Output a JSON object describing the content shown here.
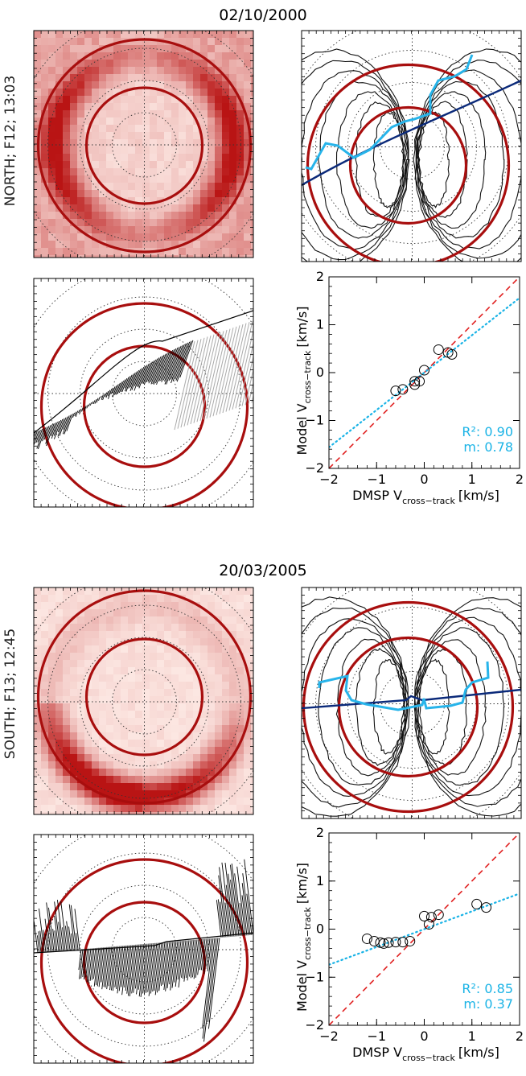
{
  "panels": [
    {
      "date": "02/10/2000",
      "side_label": "NORTH; F12; 13:03",
      "colors": {
        "ring": "#a80e0e",
        "track": "#0b2a7a",
        "model": "#27b4ea",
        "fit": "#19b3e6",
        "identity": "#e02020"
      },
      "scatter": {
        "xlabel": "DMSP V",
        "xlabel_sub": "cross−track",
        "ylabel": "Model V",
        "ylabel_sub": "cross−track",
        "unit": "[km/s]",
        "r2_label": "R²: 0.90",
        "m_label": "m: 0.78"
      }
    },
    {
      "date": "20/03/2005",
      "side_label": "SOUTH; F13; 12:45",
      "colors": {
        "ring": "#a80e0e",
        "track": "#0b2a7a",
        "model": "#27b4ea",
        "fit": "#19b3e6",
        "identity": "#e02020"
      },
      "scatter": {
        "xlabel": "DMSP V",
        "xlabel_sub": "cross−track",
        "ylabel": "Model V",
        "ylabel_sub": "cross−track",
        "unit": "[km/s]",
        "r2_label": "R²: 0.85",
        "m_label": "m: 0.37"
      }
    }
  ],
  "chart_data": [
    {
      "type": "scatter",
      "title": "02/10/2000",
      "xlabel": "DMSP V cross−track [km/s]",
      "ylabel": "Model V cross−track [km/s]",
      "xlim": [
        -2,
        2
      ],
      "ylim": [
        -2,
        2
      ],
      "ticks": [
        -2,
        -1,
        0,
        1,
        2
      ],
      "tick_labels": [
        "−2",
        "−1",
        "0",
        "1",
        "2"
      ],
      "points": [
        {
          "x": -0.6,
          "y": -0.38
        },
        {
          "x": -0.45,
          "y": -0.35
        },
        {
          "x": -0.2,
          "y": -0.25
        },
        {
          "x": -0.2,
          "y": -0.18
        },
        {
          "x": -0.1,
          "y": -0.18
        },
        {
          "x": 0.0,
          "y": 0.05
        },
        {
          "x": 0.3,
          "y": 0.48
        },
        {
          "x": 0.5,
          "y": 0.42
        },
        {
          "x": 0.58,
          "y": 0.38
        }
      ],
      "fit": {
        "slope": 0.78,
        "intercept": 0.0,
        "r2": 0.9
      },
      "identity_line": true
    },
    {
      "type": "scatter",
      "title": "20/03/2005",
      "xlabel": "DMSP V cross−track [km/s]",
      "ylabel": "Model V cross−track [km/s]",
      "xlim": [
        -2,
        2
      ],
      "ylim": [
        -2,
        2
      ],
      "ticks": [
        -2,
        -1,
        0,
        1,
        2
      ],
      "tick_labels": [
        "−2",
        "−1",
        "0",
        "1",
        "2"
      ],
      "points": [
        {
          "x": -1.2,
          "y": -0.2
        },
        {
          "x": -1.05,
          "y": -0.25
        },
        {
          "x": -0.92,
          "y": -0.28
        },
        {
          "x": -0.85,
          "y": -0.3
        },
        {
          "x": -0.75,
          "y": -0.28
        },
        {
          "x": -0.6,
          "y": -0.27
        },
        {
          "x": -0.45,
          "y": -0.27
        },
        {
          "x": -0.3,
          "y": -0.25
        },
        {
          "x": 0.0,
          "y": 0.27
        },
        {
          "x": 0.1,
          "y": 0.1
        },
        {
          "x": 0.15,
          "y": 0.25
        },
        {
          "x": 0.3,
          "y": 0.3
        },
        {
          "x": 1.1,
          "y": 0.52
        },
        {
          "x": 1.3,
          "y": 0.45
        }
      ],
      "fit": {
        "slope": 0.37,
        "intercept": 0.0,
        "r2": 0.85
      },
      "identity_line": true
    }
  ]
}
